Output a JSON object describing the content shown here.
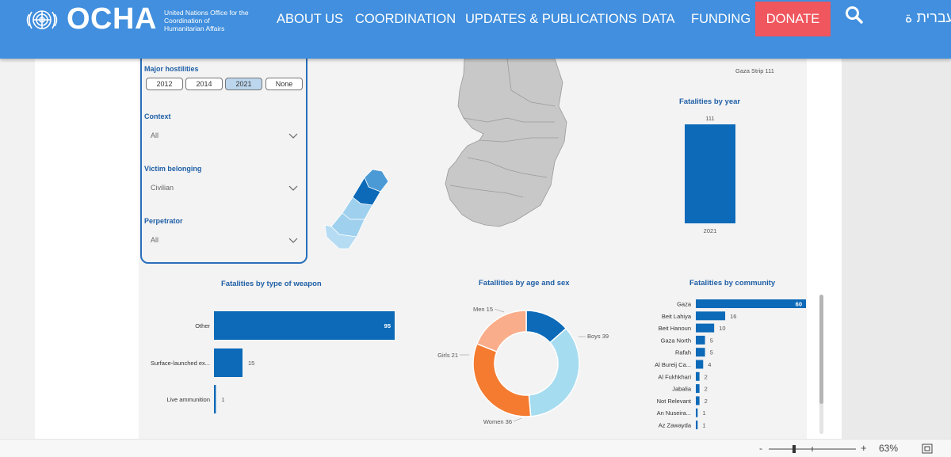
{
  "header": {
    "logo_text": "OCHA",
    "logo_subtitle": "United Nations Office for the Coordination of Humanitarian Affairs",
    "nav": [
      "ABOUT US",
      "COORDINATION",
      "UPDATES & PUBLICATIONS",
      "DATA",
      "FUNDING"
    ],
    "donate": "DONATE",
    "language": "עברית",
    "language_partial": "ة"
  },
  "filters": {
    "major_hostilities_label": "Major hostilities",
    "years": [
      "2012",
      "2014",
      "2021",
      "None"
    ],
    "selected_year": "2021",
    "context_label": "Context",
    "context_value": "All",
    "victim_label": "Victim belonging",
    "victim_value": "Civilian",
    "perpetrator_label": "Perpetrator",
    "perpetrator_value": "All"
  },
  "map": {
    "gaza_label": "Gaza Strip 111"
  },
  "by_year": {
    "title": "Fatalities by year",
    "value_label": "111",
    "category_label": "2021"
  },
  "by_weapon": {
    "title": "Fatalities by type of weapon"
  },
  "by_age_sex": {
    "title": "Fatallities by age and sex",
    "labels": [
      "Men 15",
      "Boys 39",
      "Girls 21",
      "Women 36"
    ]
  },
  "by_community": {
    "title": "Fatalities by community"
  },
  "footer": {
    "zoom_minus": "-",
    "zoom_plus": "+",
    "zoom": "63%"
  },
  "colors": {
    "header": "#418fde",
    "donate": "#f0565d",
    "bar": "#0c6ab8",
    "title": "#1f5fa6"
  },
  "chart_data": [
    {
      "type": "bar",
      "title": "Fatalities by year",
      "categories": [
        "2021"
      ],
      "values": [
        111
      ]
    },
    {
      "type": "bar",
      "title": "Fatalities by type of weapon",
      "categories": [
        "Other",
        "Surface-launched ex...",
        "Live ammunition"
      ],
      "values": [
        95,
        15,
        1
      ]
    },
    {
      "type": "pie",
      "title": "Fatallities by age and sex",
      "categories": [
        "Men",
        "Boys",
        "Women",
        "Girls"
      ],
      "values": [
        15,
        39,
        36,
        21
      ],
      "colors": [
        "#0c6ab8",
        "#a6dcf0",
        "#f47b30",
        "#f9ad8a"
      ]
    },
    {
      "type": "bar",
      "title": "Fatalities by community",
      "categories": [
        "Gaza",
        "Beit Lahiya",
        "Beit Hanoun",
        "Gaza North",
        "Rafah",
        "Al Bureij Ca...",
        "Al Fukhkhari",
        "Jabalia",
        "Not Relevant",
        "An Nuseira...",
        "Az Zawayda"
      ],
      "values": [
        60,
        16,
        10,
        5,
        5,
        4,
        2,
        2,
        2,
        1,
        1
      ]
    }
  ]
}
